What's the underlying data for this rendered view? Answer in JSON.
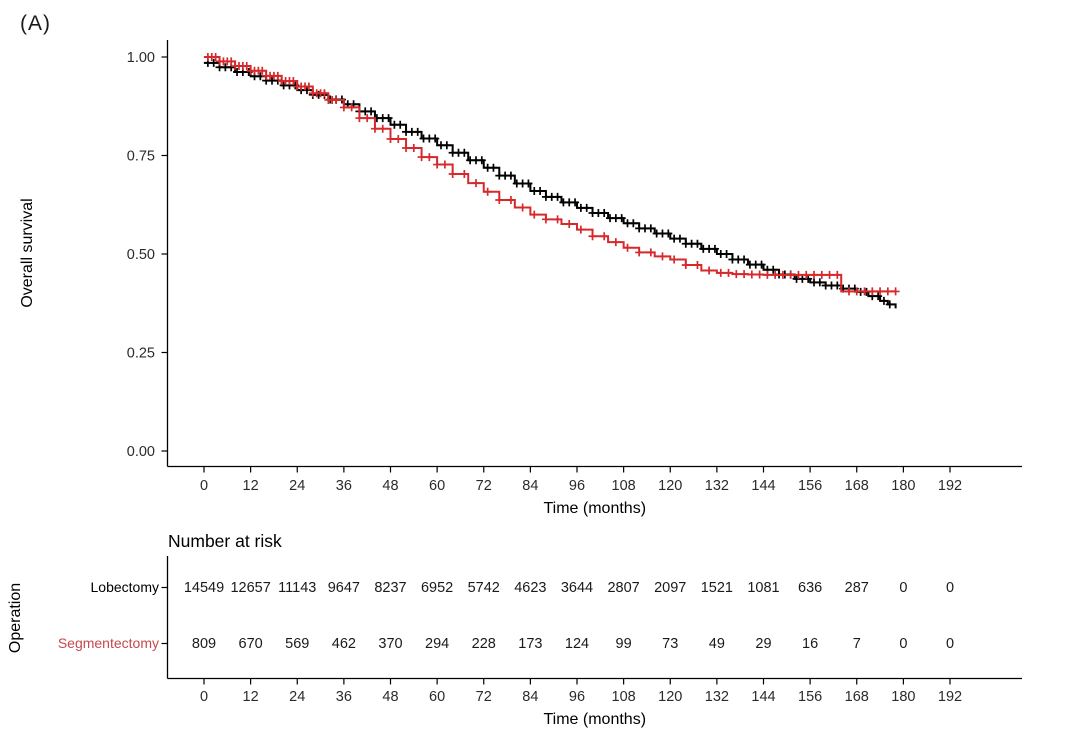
{
  "panel_label": "(A)",
  "colors": {
    "lobectomy": "#000000",
    "segmentectomy": "#d6292b",
    "segmentectomy_label": "#c5494d",
    "axis_line": "#000000",
    "tick_text": "#2b2b2b",
    "title_text": "#000000",
    "background": "#ffffff"
  },
  "chart_data": {
    "type": "line",
    "subtype": "kaplan_meier_step",
    "title": "",
    "xlabel": "Time (months)",
    "ylabel": "Overall survival",
    "xlim": [
      0,
      192
    ],
    "ylim": [
      0,
      1
    ],
    "grid": false,
    "legend_position": "none",
    "x_ticks": [
      0,
      12,
      24,
      36,
      48,
      60,
      72,
      84,
      96,
      108,
      120,
      132,
      144,
      156,
      168,
      180,
      192
    ],
    "y_ticks": [
      {
        "value": 0.0,
        "label": "0.00"
      },
      {
        "value": 0.25,
        "label": "0.25"
      },
      {
        "value": 0.5,
        "label": "0.50"
      },
      {
        "value": 0.75,
        "label": "0.75"
      },
      {
        "value": 1.0,
        "label": "1.00"
      }
    ],
    "series": [
      {
        "name": "Lobectomy",
        "color": "#000000",
        "points": [
          [
            0,
            0.985
          ],
          [
            4,
            0.974
          ],
          [
            8,
            0.962
          ],
          [
            12,
            0.951
          ],
          [
            16,
            0.94
          ],
          [
            20,
            0.928
          ],
          [
            24,
            0.916
          ],
          [
            28,
            0.904
          ],
          [
            32,
            0.892
          ],
          [
            36,
            0.88
          ],
          [
            40,
            0.862
          ],
          [
            44,
            0.845
          ],
          [
            48,
            0.828
          ],
          [
            52,
            0.81
          ],
          [
            56,
            0.793
          ],
          [
            60,
            0.776
          ],
          [
            64,
            0.757
          ],
          [
            68,
            0.738
          ],
          [
            72,
            0.719
          ],
          [
            76,
            0.699
          ],
          [
            80,
            0.679
          ],
          [
            84,
            0.66
          ],
          [
            88,
            0.645
          ],
          [
            92,
            0.631
          ],
          [
            96,
            0.617
          ],
          [
            100,
            0.604
          ],
          [
            104,
            0.591
          ],
          [
            108,
            0.578
          ],
          [
            112,
            0.565
          ],
          [
            116,
            0.552
          ],
          [
            120,
            0.539
          ],
          [
            124,
            0.526
          ],
          [
            128,
            0.513
          ],
          [
            132,
            0.5
          ],
          [
            136,
            0.486
          ],
          [
            140,
            0.473
          ],
          [
            144,
            0.46
          ],
          [
            148,
            0.448
          ],
          [
            152,
            0.437
          ],
          [
            156,
            0.428
          ],
          [
            160,
            0.42
          ],
          [
            164,
            0.412
          ],
          [
            168,
            0.404
          ],
          [
            171,
            0.393
          ],
          [
            174,
            0.381
          ],
          [
            176,
            0.372
          ],
          [
            178,
            0.362
          ]
        ],
        "censor_marks": {
          "uniform": {
            "start": 1,
            "end": 177,
            "step": 1.5
          }
        }
      },
      {
        "name": "Segmentectomy",
        "color": "#d6292b",
        "points": [
          [
            0,
            1.0
          ],
          [
            4,
            0.989
          ],
          [
            8,
            0.977
          ],
          [
            12,
            0.965
          ],
          [
            16,
            0.952
          ],
          [
            20,
            0.939
          ],
          [
            24,
            0.925
          ],
          [
            28,
            0.908
          ],
          [
            32,
            0.891
          ],
          [
            36,
            0.872
          ],
          [
            40,
            0.845
          ],
          [
            44,
            0.818
          ],
          [
            48,
            0.792
          ],
          [
            52,
            0.769
          ],
          [
            56,
            0.746
          ],
          [
            60,
            0.727
          ],
          [
            64,
            0.703
          ],
          [
            68,
            0.68
          ],
          [
            72,
            0.658
          ],
          [
            76,
            0.637
          ],
          [
            80,
            0.618
          ],
          [
            84,
            0.6
          ],
          [
            88,
            0.588
          ],
          [
            92,
            0.576
          ],
          [
            96,
            0.562
          ],
          [
            100,
            0.545
          ],
          [
            104,
            0.53
          ],
          [
            108,
            0.516
          ],
          [
            112,
            0.504
          ],
          [
            116,
            0.494
          ],
          [
            120,
            0.486
          ],
          [
            124,
            0.472
          ],
          [
            128,
            0.458
          ],
          [
            132,
            0.452
          ],
          [
            136,
            0.449
          ],
          [
            140,
            0.448
          ],
          [
            144,
            0.447
          ],
          [
            164,
            0.447
          ],
          [
            164,
            0.405
          ],
          [
            178,
            0.405
          ]
        ],
        "censor_marks": {
          "times": [
            1,
            2,
            3,
            4,
            5,
            6,
            7,
            8,
            9,
            10,
            11,
            12,
            13,
            14,
            15,
            16,
            17,
            18,
            19,
            20,
            21,
            22,
            23,
            24,
            25,
            26,
            27,
            28,
            29,
            30,
            31,
            32,
            33,
            34,
            36,
            38,
            40,
            42,
            44,
            46,
            48,
            50,
            52,
            54,
            56,
            58,
            60,
            62,
            64,
            67,
            70,
            73,
            76,
            79,
            82,
            85,
            88,
            91,
            94,
            97,
            100,
            103,
            106,
            109,
            112,
            115,
            118,
            121,
            124,
            127,
            130,
            133,
            135,
            137,
            139,
            141,
            143,
            145,
            147,
            149,
            151,
            153,
            155,
            157,
            159,
            161,
            163,
            166,
            168,
            170,
            172,
            174,
            176,
            178
          ]
        }
      }
    ]
  },
  "risk_table": {
    "title": "Number at risk",
    "group_axis_label": "Operation",
    "xlabel": "Time (months)",
    "x_ticks": [
      0,
      12,
      24,
      36,
      48,
      60,
      72,
      84,
      96,
      108,
      120,
      132,
      144,
      156,
      168,
      180,
      192
    ],
    "rows": [
      {
        "label": "Lobectomy",
        "color": "#000000",
        "values": [
          14549,
          12657,
          11143,
          9647,
          8237,
          6952,
          5742,
          4623,
          3644,
          2807,
          2097,
          1521,
          1081,
          636,
          287,
          0,
          0
        ]
      },
      {
        "label": "Segmentectomy",
        "color": "#c5494d",
        "values": [
          809,
          670,
          569,
          462,
          370,
          294,
          228,
          173,
          124,
          99,
          73,
          49,
          29,
          16,
          7,
          0,
          0
        ]
      }
    ]
  }
}
